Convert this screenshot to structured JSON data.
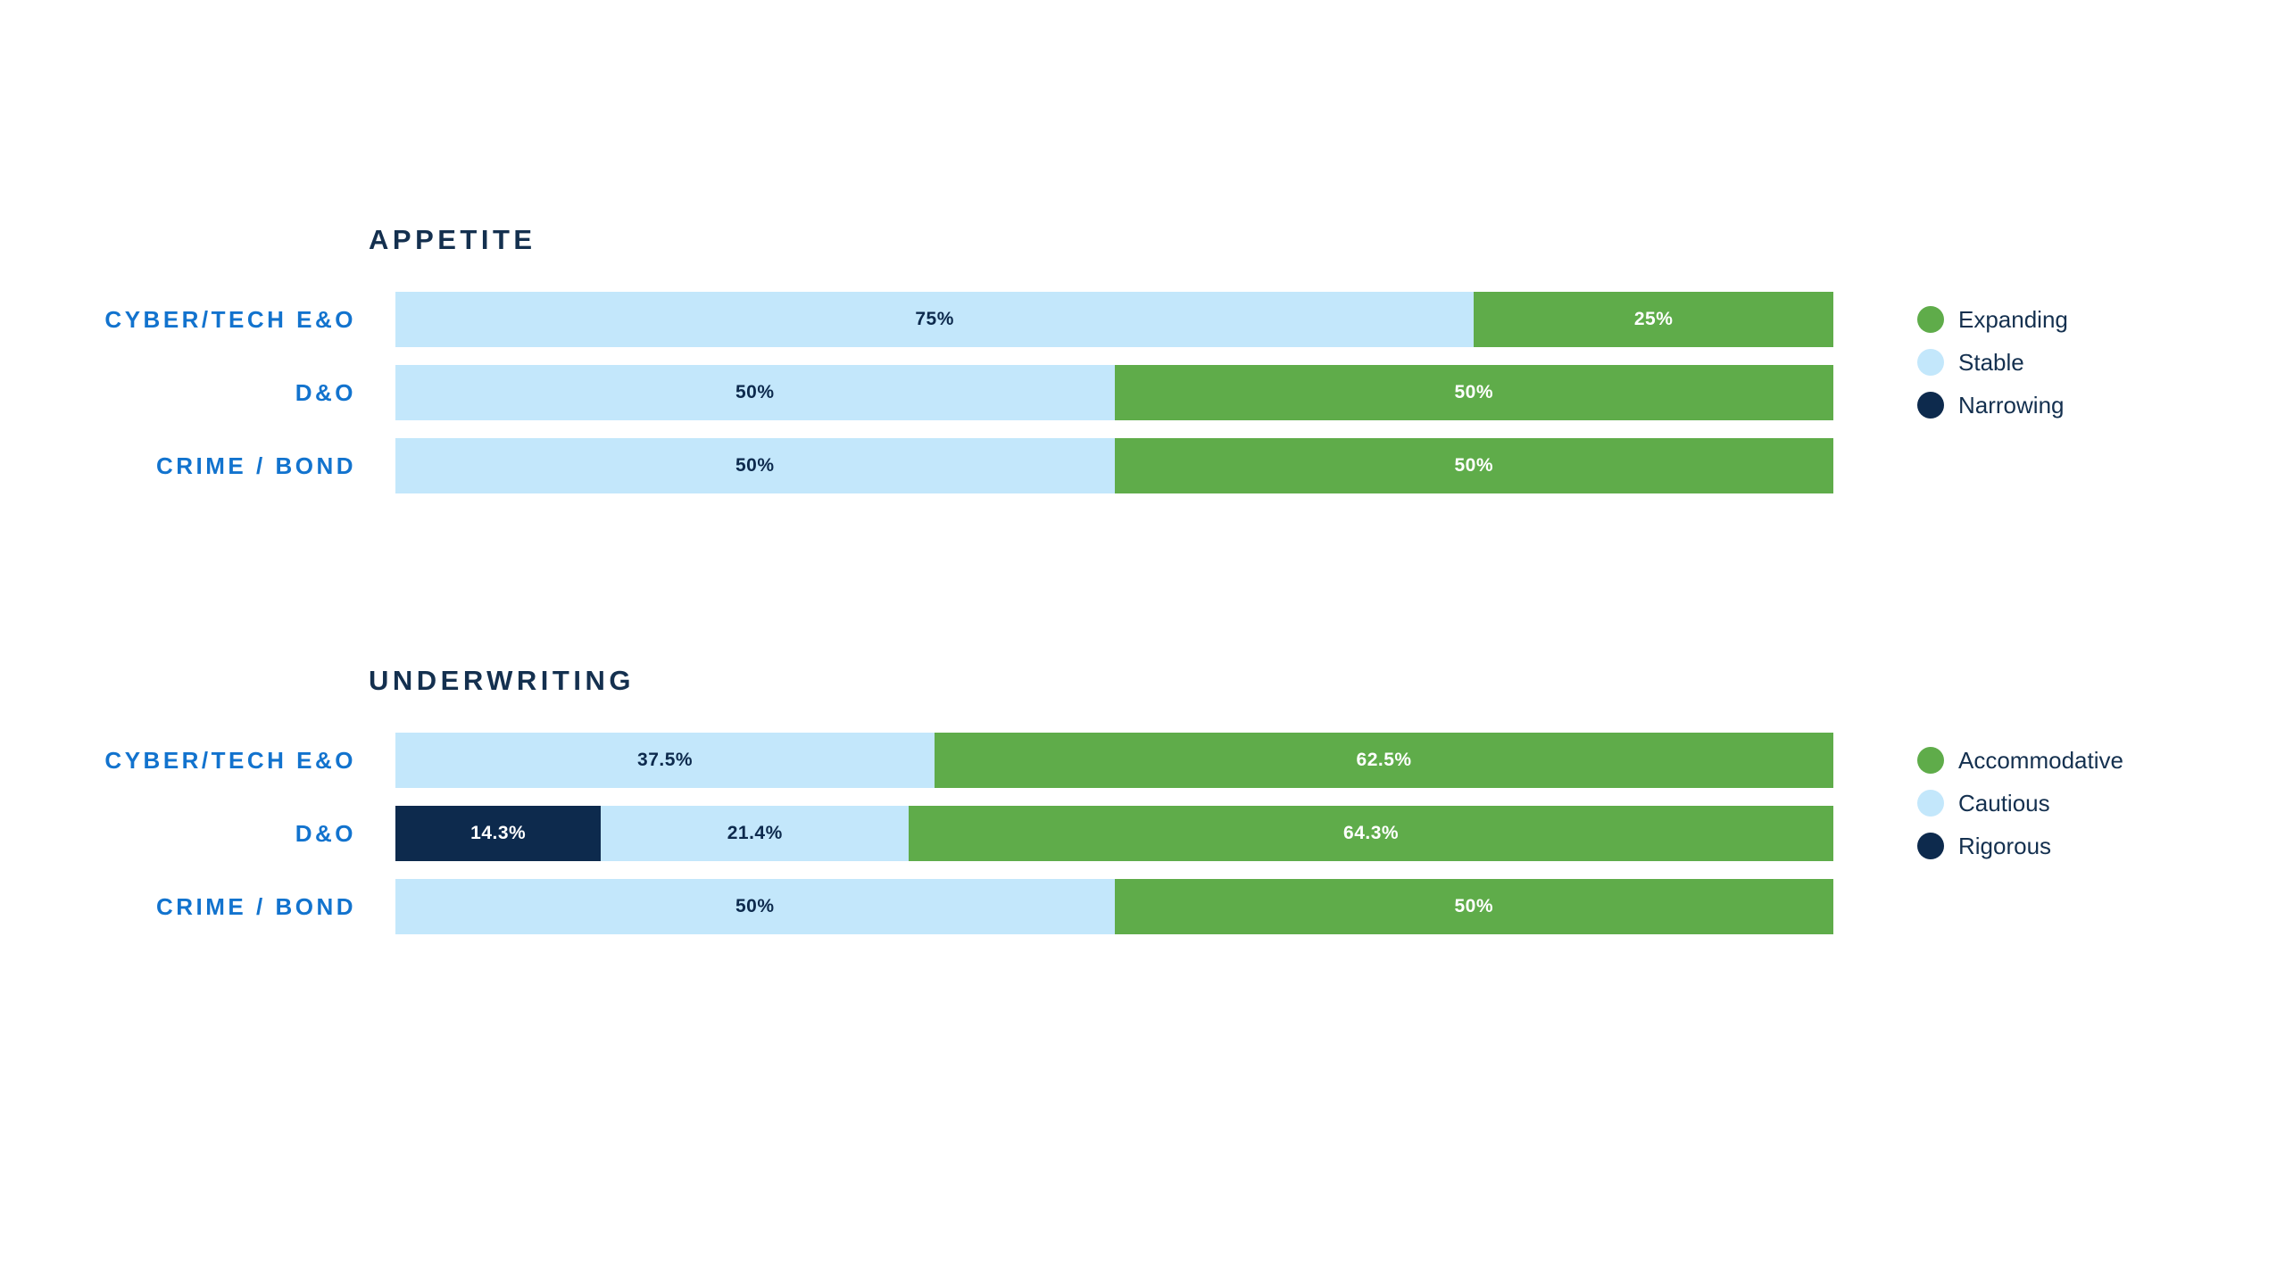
{
  "page": {
    "background": "#FFFFFF"
  },
  "colors": {
    "green": "#5FAC4A",
    "light_blue": "#C3E7FB",
    "navy": "#0D2A4D",
    "category_label_blue": "#1273CE",
    "heading_text": "#14304F",
    "value_text_on_light": "#0D2A4D",
    "value_text_on_dark": "#FFFFFF"
  },
  "chart_data": [
    {
      "type": "bar",
      "orientation": "horizontal",
      "stacked": true,
      "title": "APPETITE",
      "xlabel": "",
      "ylabel": "",
      "xlim": [
        0,
        100
      ],
      "grid": false,
      "legend_position": "right",
      "categories": [
        "CYBER/TECH E&O",
        "D&O",
        "CRIME / BOND"
      ],
      "legend": [
        {
          "label": "Expanding",
          "color_key": "green"
        },
        {
          "label": "Stable",
          "color_key": "light_blue"
        },
        {
          "label": "Narrowing",
          "color_key": "navy"
        }
      ],
      "rows": [
        {
          "category": "CYBER/TECH E&O",
          "segments": [
            {
              "series": "Stable",
              "value": 75,
              "label": "75%",
              "color_key": "light_blue"
            },
            {
              "series": "Expanding",
              "value": 25,
              "label": "25%",
              "color_key": "green"
            }
          ]
        },
        {
          "category": "D&O",
          "segments": [
            {
              "series": "Stable",
              "value": 50,
              "label": "50%",
              "color_key": "light_blue"
            },
            {
              "series": "Expanding",
              "value": 50,
              "label": "50%",
              "color_key": "green"
            }
          ]
        },
        {
          "category": "CRIME / BOND",
          "segments": [
            {
              "series": "Stable",
              "value": 50,
              "label": "50%",
              "color_key": "light_blue"
            },
            {
              "series": "Expanding",
              "value": 50,
              "label": "50%",
              "color_key": "green"
            }
          ]
        }
      ]
    },
    {
      "type": "bar",
      "orientation": "horizontal",
      "stacked": true,
      "title": "UNDERWRITING",
      "xlabel": "",
      "ylabel": "",
      "xlim": [
        0,
        100
      ],
      "grid": false,
      "legend_position": "right",
      "categories": [
        "CYBER/TECH E&O",
        "D&O",
        "CRIME / BOND"
      ],
      "legend": [
        {
          "label": "Accommodative",
          "color_key": "green"
        },
        {
          "label": "Cautious",
          "color_key": "light_blue"
        },
        {
          "label": "Rigorous",
          "color_key": "navy"
        }
      ],
      "rows": [
        {
          "category": "CYBER/TECH E&O",
          "segments": [
            {
              "series": "Cautious",
              "value": 37.5,
              "label": "37.5%",
              "color_key": "light_blue"
            },
            {
              "series": "Accommodative",
              "value": 62.5,
              "label": "62.5%",
              "color_key": "green"
            }
          ]
        },
        {
          "category": "D&O",
          "segments": [
            {
              "series": "Rigorous",
              "value": 14.3,
              "label": "14.3%",
              "color_key": "navy"
            },
            {
              "series": "Cautious",
              "value": 21.4,
              "label": "21.4%",
              "color_key": "light_blue"
            },
            {
              "series": "Accommodative",
              "value": 64.3,
              "label": "64.3%",
              "color_key": "green"
            }
          ]
        },
        {
          "category": "CRIME / BOND",
          "segments": [
            {
              "series": "Cautious",
              "value": 50,
              "label": "50%",
              "color_key": "light_blue"
            },
            {
              "series": "Accommodative",
              "value": 50,
              "label": "50%",
              "color_key": "green"
            }
          ]
        }
      ]
    }
  ]
}
